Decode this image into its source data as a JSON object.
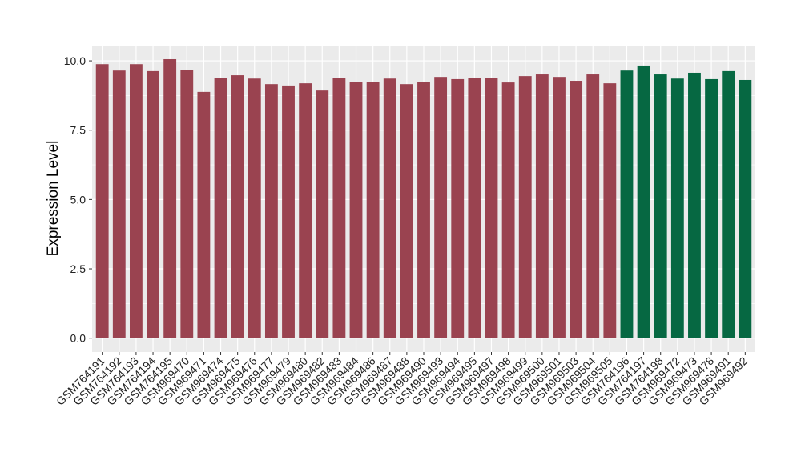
{
  "chart_data": {
    "type": "bar",
    "y_label": "Expression Level",
    "categories": [
      "GSM764191",
      "GSM764192",
      "GSM764193",
      "GSM764194",
      "GSM764195",
      "GSM969470",
      "GSM969471",
      "GSM969474",
      "GSM969475",
      "GSM969476",
      "GSM969477",
      "GSM969479",
      "GSM969480",
      "GSM969482",
      "GSM969483",
      "GSM969484",
      "GSM969486",
      "GSM969487",
      "GSM969488",
      "GSM969490",
      "GSM969493",
      "GSM969494",
      "GSM969495",
      "GSM969497",
      "GSM969498",
      "GSM969499",
      "GSM969500",
      "GSM969501",
      "GSM969503",
      "GSM969504",
      "GSM969505",
      "GSM764196",
      "GSM764197",
      "GSM764198",
      "GSM969472",
      "GSM969473",
      "GSM969478",
      "GSM969491",
      "GSM969492"
    ],
    "values": [
      9.88,
      9.65,
      9.88,
      9.63,
      10.06,
      9.68,
      8.88,
      9.39,
      9.48,
      9.36,
      9.16,
      9.11,
      9.19,
      8.93,
      9.39,
      9.25,
      9.25,
      9.36,
      9.16,
      9.25,
      9.42,
      9.34,
      9.39,
      9.39,
      9.22,
      9.45,
      9.51,
      9.42,
      9.28,
      9.51,
      9.19,
      9.65,
      9.83,
      9.51,
      9.36,
      9.57,
      9.34,
      9.63,
      9.31
    ],
    "colors": [
      "#9a4350",
      "#9a4350",
      "#9a4350",
      "#9a4350",
      "#9a4350",
      "#9a4350",
      "#9a4350",
      "#9a4350",
      "#9a4350",
      "#9a4350",
      "#9a4350",
      "#9a4350",
      "#9a4350",
      "#9a4350",
      "#9a4350",
      "#9a4350",
      "#9a4350",
      "#9a4350",
      "#9a4350",
      "#9a4350",
      "#9a4350",
      "#9a4350",
      "#9a4350",
      "#9a4350",
      "#9a4350",
      "#9a4350",
      "#9a4350",
      "#9a4350",
      "#9a4350",
      "#9a4350",
      "#9a4350",
      "#066842",
      "#066842",
      "#066842",
      "#066842",
      "#066842",
      "#066842",
      "#066842",
      "#066842"
    ],
    "ylim": [
      -0.5,
      10.55
    ],
    "yticks": [
      {
        "value": 0,
        "label": "0.0"
      },
      {
        "value": 2.5,
        "label": "2.5"
      },
      {
        "value": 5,
        "label": "5.0"
      },
      {
        "value": 7.5,
        "label": "7.5"
      },
      {
        "value": 10,
        "label": "10.0"
      }
    ],
    "grid": true
  }
}
